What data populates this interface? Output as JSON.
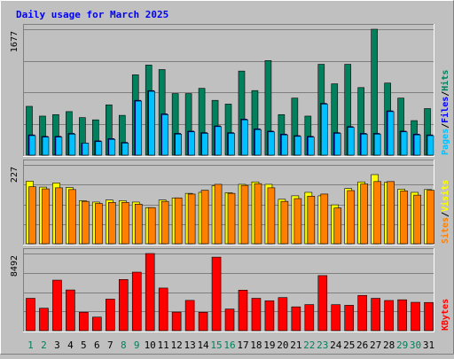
{
  "title": "Daily usage for March 2025",
  "colors": {
    "background": "#c0c0c0",
    "border_dark": "#808080",
    "border_light": "#ffffff",
    "title_text": "#0000ff",
    "gridline": "#7f7f7f",
    "hits": "#00805c",
    "files": "#0000ff",
    "pages": "#00c0ff",
    "visits": "#ffff00",
    "sites": "#ff8000",
    "kbytes": "#ff0000",
    "weekend_label": "#00805c",
    "weekday_label": "#000000",
    "separator": "#000000"
  },
  "chart_data": [
    {
      "type": "bar",
      "panel": "hits-files-pages",
      "ytick_label": "1677",
      "ymax": 1677,
      "right_label": [
        "Pages",
        "/",
        "Files",
        "/",
        "Hits"
      ],
      "right_label_colors": [
        "pages",
        "separator",
        "files",
        "separator",
        "hits"
      ],
      "categories": [
        "1",
        "2",
        "3",
        "4",
        "5",
        "6",
        "7",
        "8",
        "9",
        "10",
        "11",
        "12",
        "13",
        "14",
        "15",
        "16",
        "17",
        "18",
        "19",
        "20",
        "21",
        "22",
        "23",
        "24",
        "25",
        "26",
        "27",
        "28",
        "29",
        "30",
        "31"
      ],
      "series": [
        {
          "name": "Hits",
          "color_key": "hits",
          "values": [
            650,
            520,
            540,
            580,
            500,
            470,
            670,
            530,
            1070,
            1200,
            1140,
            820,
            820,
            890,
            730,
            680,
            1120,
            860,
            1260,
            540,
            760,
            520,
            1210,
            950,
            1210,
            900,
            1677,
            960,
            760,
            460,
            620
          ]
        },
        {
          "name": "Files",
          "color_key": "files",
          "values": [
            270,
            250,
            250,
            290,
            160,
            190,
            220,
            170,
            730,
            860,
            550,
            290,
            320,
            300,
            390,
            300,
            480,
            350,
            320,
            280,
            260,
            250,
            690,
            300,
            380,
            290,
            290,
            590,
            320,
            280,
            270
          ]
        },
        {
          "name": "Pages",
          "color_key": "pages",
          "values": [
            260,
            240,
            240,
            280,
            160,
            180,
            210,
            160,
            720,
            850,
            540,
            280,
            310,
            290,
            380,
            290,
            470,
            340,
            310,
            270,
            250,
            240,
            680,
            290,
            370,
            280,
            280,
            580,
            310,
            270,
            260
          ]
        }
      ]
    },
    {
      "type": "bar",
      "panel": "visits-sites",
      "ytick_label": "227",
      "ymax": 227,
      "right_label": [
        "Sites",
        "/",
        "Visits"
      ],
      "right_label_colors": [
        "sites",
        "separator",
        "visits"
      ],
      "categories": [
        "1",
        "2",
        "3",
        "4",
        "5",
        "6",
        "7",
        "8",
        "9",
        "10",
        "11",
        "12",
        "13",
        "14",
        "15",
        "16",
        "17",
        "18",
        "19",
        "20",
        "21",
        "22",
        "23",
        "24",
        "25",
        "26",
        "27",
        "28",
        "29",
        "30",
        "31"
      ],
      "series": [
        {
          "name": "Visits",
          "color_key": "visits",
          "values": [
            180,
            163,
            175,
            162,
            124,
            120,
            126,
            124,
            120,
            104,
            126,
            132,
            145,
            148,
            167,
            147,
            171,
            178,
            171,
            128,
            138,
            148,
            138,
            112,
            159,
            178,
            199,
            177,
            157,
            148,
            156
          ]
        },
        {
          "name": "Sites",
          "color_key": "sites",
          "values": [
            164,
            158,
            161,
            156,
            122,
            116,
            119,
            119,
            114,
            104,
            122,
            132,
            143,
            154,
            171,
            145,
            168,
            173,
            161,
            122,
            130,
            137,
            143,
            103,
            153,
            172,
            179,
            179,
            152,
            140,
            154
          ]
        }
      ]
    },
    {
      "type": "bar",
      "panel": "kbytes",
      "ytick_label": "8492",
      "ymax": 8492,
      "right_label": [
        "KBytes"
      ],
      "right_label_colors": [
        "kbytes"
      ],
      "categories": [
        "1",
        "2",
        "3",
        "4",
        "5",
        "6",
        "7",
        "8",
        "9",
        "10",
        "11",
        "12",
        "13",
        "14",
        "15",
        "16",
        "17",
        "18",
        "19",
        "20",
        "21",
        "22",
        "23",
        "24",
        "25",
        "26",
        "27",
        "28",
        "29",
        "30",
        "31"
      ],
      "series": [
        {
          "name": "KBytes",
          "color_key": "kbytes",
          "values": [
            3560,
            2470,
            5560,
            4480,
            2030,
            1490,
            3470,
            5630,
            6440,
            8492,
            4690,
            2040,
            3330,
            2020,
            8090,
            2380,
            4460,
            3560,
            3290,
            3640,
            2620,
            2870,
            6060,
            2860,
            2790,
            3880,
            3560,
            3320,
            3400,
            3120,
            3100
          ]
        }
      ]
    }
  ],
  "weekend_days": [
    1,
    2,
    8,
    9,
    15,
    16,
    22,
    23,
    29,
    30
  ]
}
